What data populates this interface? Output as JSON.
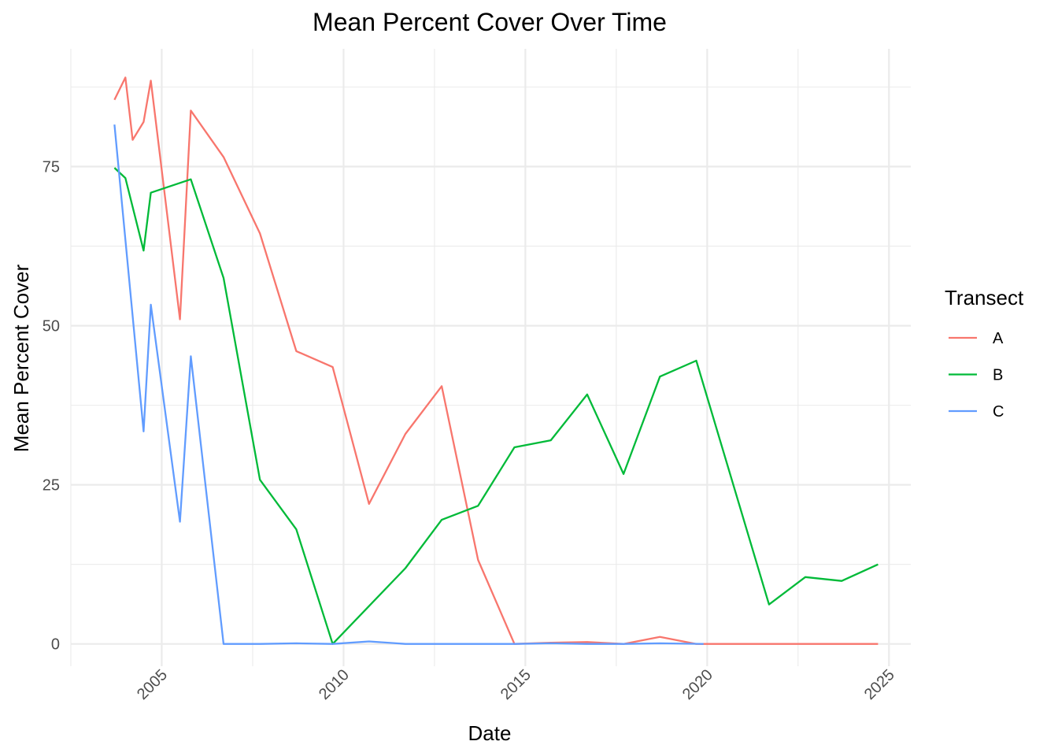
{
  "chart_data": {
    "type": "line",
    "title": "Mean Percent Cover Over Time",
    "xlabel": "Date",
    "ylabel": "Mean Percent Cover",
    "legend_title": "Transect",
    "legend_position": "right",
    "grid": true,
    "x_ticks": [
      2005,
      2010,
      2015,
      2020,
      2025
    ],
    "y_ticks": [
      0,
      25,
      50,
      75
    ],
    "xlim": [
      2002.5,
      2025.6
    ],
    "ylim": [
      -3.5,
      93.5
    ],
    "series": [
      {
        "name": "A",
        "color": "#F8766D",
        "x": [
          2003.7,
          2004.0,
          2004.2,
          2004.5,
          2004.7,
          2005.5,
          2005.8,
          2006.7,
          2007.7,
          2008.7,
          2009.7,
          2010.7,
          2011.7,
          2012.7,
          2013.7,
          2014.7,
          2015.7,
          2016.7,
          2017.7,
          2018.7,
          2019.7,
          2020.7,
          2021.7,
          2022.7,
          2023.7,
          2024.7
        ],
        "y": [
          85.5,
          89,
          79.2,
          82,
          88.5,
          51,
          83.8,
          76.5,
          64.5,
          46,
          43.5,
          22,
          33,
          40.5,
          13.2,
          0,
          0.2,
          0.3,
          0,
          1.1,
          0,
          0,
          0,
          0,
          0,
          0
        ]
      },
      {
        "name": "B",
        "color": "#00BA38",
        "x": [
          2003.7,
          2004.0,
          2004.5,
          2004.7,
          2005.8,
          2006.7,
          2007.7,
          2008.7,
          2009.7,
          2011.7,
          2012.7,
          2013.7,
          2014.7,
          2015.7,
          2016.7,
          2017.7,
          2018.7,
          2019.7,
          2021.7,
          2022.7,
          2023.7,
          2024.7
        ],
        "y": [
          74.8,
          73.2,
          61.8,
          70.9,
          73,
          57.5,
          25.8,
          18,
          0,
          11.9,
          19.5,
          21.7,
          30.9,
          32,
          39.2,
          26.7,
          42,
          44.5,
          6.2,
          10.5,
          9.9,
          12.5
        ]
      },
      {
        "name": "C",
        "color": "#619CFF",
        "x": [
          2003.7,
          2004.5,
          2004.7,
          2005.5,
          2005.8,
          2006.7,
          2007.7,
          2008.7,
          2009.7,
          2010.7,
          2011.7,
          2012.7,
          2013.7,
          2014.7,
          2015.7,
          2016.7,
          2017.7,
          2018.7,
          2019.9
        ],
        "y": [
          81.6,
          33.4,
          53.3,
          19.2,
          45.2,
          0,
          0,
          0.1,
          0,
          0.4,
          0,
          0,
          0,
          0,
          0.1,
          0,
          0,
          0.1,
          0
        ]
      }
    ]
  }
}
